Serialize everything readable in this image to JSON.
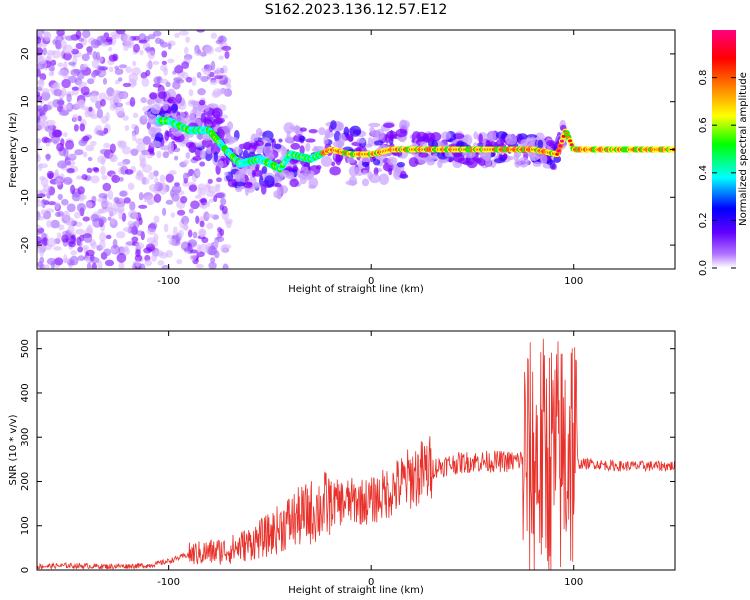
{
  "chart_data": [
    {
      "type": "heatmap",
      "title": "S162.2023.136.12.57.E12",
      "xlabel": "Height of straight line (km)",
      "ylabel": "Frequency (Hz)",
      "xlim": [
        -165,
        150
      ],
      "ylim": [
        -25,
        25
      ],
      "x_ticks": [
        "-100",
        "0",
        "100"
      ],
      "y_ticks": [
        "-20",
        "-10",
        "0",
        "10",
        "20"
      ],
      "grid": false,
      "colorbar": {
        "label": "Normalized spectral amplitude",
        "range": [
          0,
          1
        ],
        "ticks": [
          "0.0",
          "0.2",
          "0.4",
          "0.6",
          "0.8"
        ],
        "colors": [
          "#ffffff",
          "#8000ff",
          "#0000ff",
          "#00ffff",
          "#00ff00",
          "#ffff00",
          "#ff8000",
          "#ff0000",
          "#ff0080"
        ]
      },
      "ridge": {
        "x": [
          -100,
          -90,
          -80,
          -72,
          -65,
          -55,
          -45,
          -40,
          -30,
          -20,
          -10,
          0,
          10,
          20,
          40,
          60,
          80,
          92,
          96,
          100,
          150
        ],
        "y": [
          6,
          4,
          4,
          0,
          -3,
          -2,
          -4,
          -1,
          -2,
          0,
          -1,
          -1,
          0,
          0,
          0,
          0,
          0,
          -1,
          4,
          0,
          0
        ]
      }
    },
    {
      "type": "line",
      "xlabel": "Height of straight line (km)",
      "ylabel": "SNR (10 * v/v)",
      "xlim": [
        -165,
        150
      ],
      "ylim": [
        0,
        540
      ],
      "x_ticks": [
        "-100",
        "0",
        "100"
      ],
      "y_ticks": [
        "0",
        "100",
        "200",
        "300",
        "400",
        "500"
      ],
      "grid": false,
      "color": "#e8312a",
      "series": [
        {
          "x": [
            -165,
            -150,
            -130,
            -110,
            -100,
            -90,
            -80,
            -70,
            -60,
            -50,
            -40,
            -30,
            -20,
            -10,
            0,
            10,
            20,
            30,
            40,
            50,
            60,
            70,
            75,
            80,
            85,
            90,
            95,
            98,
            100,
            102,
            105,
            110,
            120,
            130,
            140,
            150
          ],
          "y": [
            8,
            10,
            8,
            10,
            20,
            35,
            40,
            45,
            60,
            80,
            110,
            130,
            150,
            155,
            155,
            180,
            210,
            230,
            240,
            245,
            245,
            245,
            250,
            240,
            250,
            250,
            250,
            300,
            280,
            240,
            240,
            240,
            235,
            235,
            235,
            235
          ]
        }
      ]
    }
  ]
}
